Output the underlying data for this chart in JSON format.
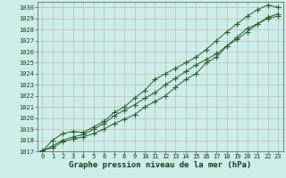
{
  "xlabel": "Graphe pression niveau de la mer (hPa)",
  "bg_color": "#cceee8",
  "grid_color": "#c8a8a8",
  "line_color": "#2d5a2d",
  "xlim_min": -0.5,
  "xlim_max": 23.5,
  "ylim_min": 1017,
  "ylim_max": 1030.5,
  "x": [
    0,
    1,
    2,
    3,
    4,
    5,
    6,
    7,
    8,
    9,
    10,
    11,
    12,
    13,
    14,
    15,
    16,
    17,
    18,
    19,
    20,
    21,
    22,
    23
  ],
  "line1": [
    1017.1,
    1017.3,
    1017.9,
    1018.1,
    1018.3,
    1018.6,
    1019.0,
    1019.5,
    1019.9,
    1020.3,
    1021.0,
    1021.5,
    1022.0,
    1022.8,
    1023.5,
    1024.0,
    1025.0,
    1025.5,
    1026.5,
    1027.3,
    1028.1,
    1028.5,
    1029.0,
    1029.2
  ],
  "line2": [
    1017.0,
    1017.5,
    1018.0,
    1018.3,
    1018.5,
    1019.0,
    1019.5,
    1020.2,
    1020.7,
    1021.2,
    1021.8,
    1022.3,
    1023.0,
    1023.6,
    1024.2,
    1024.8,
    1025.3,
    1025.8,
    1026.5,
    1027.1,
    1027.8,
    1028.5,
    1029.1,
    1029.4
  ],
  "line3": [
    1017.0,
    1018.0,
    1018.6,
    1018.8,
    1018.7,
    1019.2,
    1019.7,
    1020.5,
    1021.0,
    1021.8,
    1022.5,
    1023.5,
    1024.0,
    1024.5,
    1025.0,
    1025.5,
    1026.2,
    1027.0,
    1027.8,
    1028.5,
    1029.2,
    1029.8,
    1030.2,
    1030.0
  ],
  "xticks": [
    0,
    1,
    2,
    3,
    4,
    5,
    6,
    7,
    8,
    9,
    10,
    11,
    12,
    13,
    14,
    15,
    16,
    17,
    18,
    19,
    20,
    21,
    22,
    23
  ],
  "yticks": [
    1017,
    1018,
    1019,
    1020,
    1021,
    1022,
    1023,
    1024,
    1025,
    1026,
    1027,
    1028,
    1029,
    1030
  ],
  "marker_size": 2.0,
  "line_width": 0.7,
  "xlabel_fontsize": 6.5,
  "tick_fontsize": 5.0
}
